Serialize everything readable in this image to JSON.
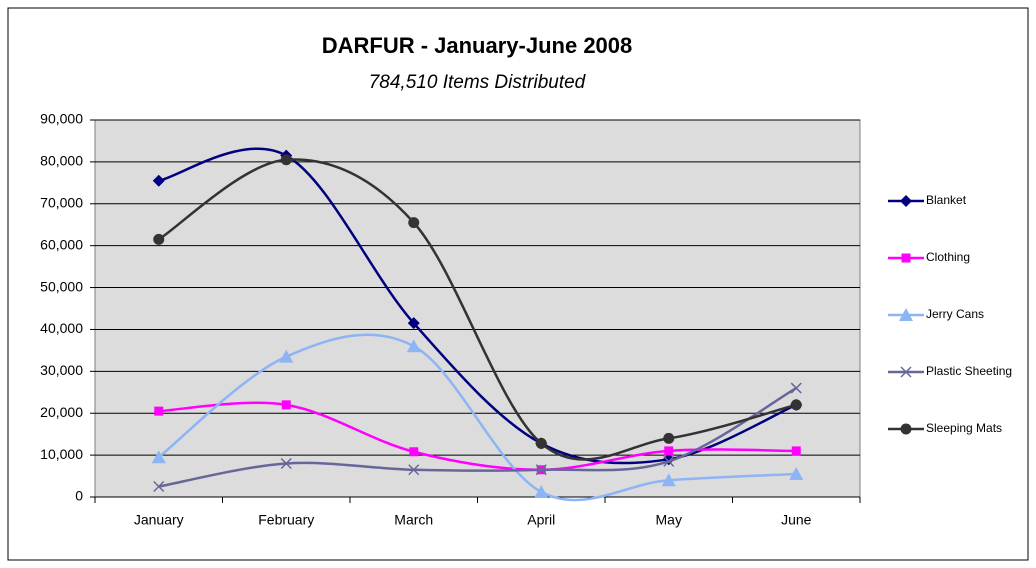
{
  "chart_data": {
    "type": "line",
    "title": "DARFUR - January-June 2008",
    "subtitle": "784,510 Items Distributed",
    "categories": [
      "January",
      "February",
      "March",
      "April",
      "May",
      "June"
    ],
    "series": [
      {
        "name": "Blanket",
        "color": "#000080",
        "marker": "diamond",
        "values": [
          75500,
          81500,
          41500,
          12800,
          9000,
          22000
        ]
      },
      {
        "name": "Clothing",
        "color": "#ff00ff",
        "marker": "square",
        "values": [
          20500,
          22000,
          10800,
          6500,
          11000,
          11000
        ]
      },
      {
        "name": "Jerry Cans",
        "color": "#8db4f5",
        "marker": "triangle",
        "values": [
          9500,
          33500,
          36000,
          1200,
          4000,
          5500
        ]
      },
      {
        "name": "Plastic Sheeting",
        "color": "#666699",
        "marker": "x",
        "values": [
          2500,
          8000,
          6500,
          6500,
          8500,
          26000
        ]
      },
      {
        "name": "Sleeping Mats",
        "color": "#333333",
        "marker": "circle",
        "values": [
          61500,
          80500,
          65500,
          12800,
          14000,
          22000
        ]
      }
    ],
    "ylim": [
      0,
      90000
    ],
    "yticks": [
      0,
      {
        "value": 10000,
        "label": "10,000"
      },
      {
        "value": 20000,
        "label": "20,000"
      },
      {
        "value": 30000,
        "label": "30,000"
      },
      {
        "value": 40000,
        "label": "40,000"
      },
      {
        "value": 50000,
        "label": "50,000"
      },
      {
        "value": 60000,
        "label": "60,000"
      },
      {
        "value": 70000,
        "label": "70,000"
      },
      {
        "value": 80000,
        "label": "80,000"
      },
      {
        "value": 90000,
        "label": "90,000"
      }
    ],
    "grid": true,
    "smooth": true,
    "legend": "right"
  }
}
